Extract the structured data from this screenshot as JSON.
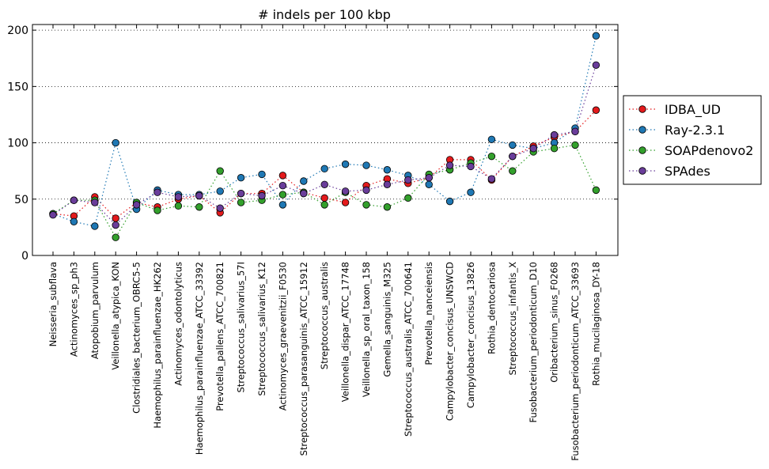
{
  "chart_data": {
    "type": "line",
    "title": "# indels per 100 kbp",
    "xlabel": "",
    "ylabel": "",
    "ylim": [
      0,
      205
    ],
    "yticks": [
      0,
      50,
      100,
      150,
      200
    ],
    "grid": "horizontal-dotted",
    "legend_position": "outside-right",
    "categories": [
      "Neisseria_subflava",
      "Actinomyces_sp_ph3",
      "Atopobium_parvulum",
      "Veillonella_atypica_KON",
      "Clostridiales_bacterium_OBRC5-5",
      "Haemophilus_parainfluenzae_HK262",
      "Actinomyces_odontolyticus",
      "Haemophilus_parainfluenzae_ATCC_33392",
      "Prevotella_pallens_ATCC_700821",
      "Streptococcus_salivarius_57I",
      "Streptococcus_salivarius_K12",
      "Actinomyces_graevenitzii_F0530",
      "Streptococcus_parasanguinis_ATCC_15912",
      "Streptococcus_australis",
      "Veillonella_dispar_ATCC_17748",
      "Veillonella_sp_oral_taxon_158",
      "Gemella_sanguinis_M325",
      "Streptococcus_australis_ATCC_700641",
      "Prevotella_nanceiensis",
      "Campylobacter_concisus_UNSWCD",
      "Campylobacter_concisus_13826",
      "Rothia_dentocariosa",
      "Streptococcus_infantis_X",
      "Fusobacterium_periodonticum_D10",
      "Oribacterium_sinus_F0268",
      "Fusobacterium_periodonticum_ATCC_33693",
      "Rothia_mucilaginosa_DY-18"
    ],
    "series": [
      {
        "name": "IDBA_UD",
        "color": "#e41a1c",
        "values": [
          37,
          35,
          52,
          33,
          47,
          43,
          50,
          53,
          38,
          55,
          55,
          71,
          56,
          51,
          47,
          62,
          68,
          64,
          69,
          85,
          85,
          67,
          88,
          97,
          105,
          110,
          129
        ]
      },
      {
        "name": "Ray-2.3.1",
        "color": "#1f78b4",
        "values": [
          37,
          30,
          26,
          100,
          41,
          58,
          54,
          54,
          57,
          69,
          72,
          45,
          66,
          77,
          81,
          80,
          76,
          71,
          63,
          48,
          56,
          103,
          98,
          95,
          100,
          113,
          195
        ]
      },
      {
        "name": "SOAPdenovo2",
        "color": "#33a02c",
        "values": [
          37,
          49,
          49,
          16,
          47,
          40,
          44,
          43,
          75,
          47,
          49,
          54,
          56,
          45,
          56,
          45,
          43,
          51,
          72,
          76,
          82,
          88,
          75,
          92,
          95,
          98,
          58
        ]
      },
      {
        "name": "SPAdes",
        "color": "#6a3d9a",
        "values": [
          36,
          49,
          47,
          27,
          45,
          56,
          52,
          53,
          42,
          55,
          53,
          62,
          55,
          63,
          57,
          58,
          63,
          67,
          69,
          80,
          79,
          68,
          88,
          95,
          107,
          110,
          169
        ]
      }
    ]
  }
}
